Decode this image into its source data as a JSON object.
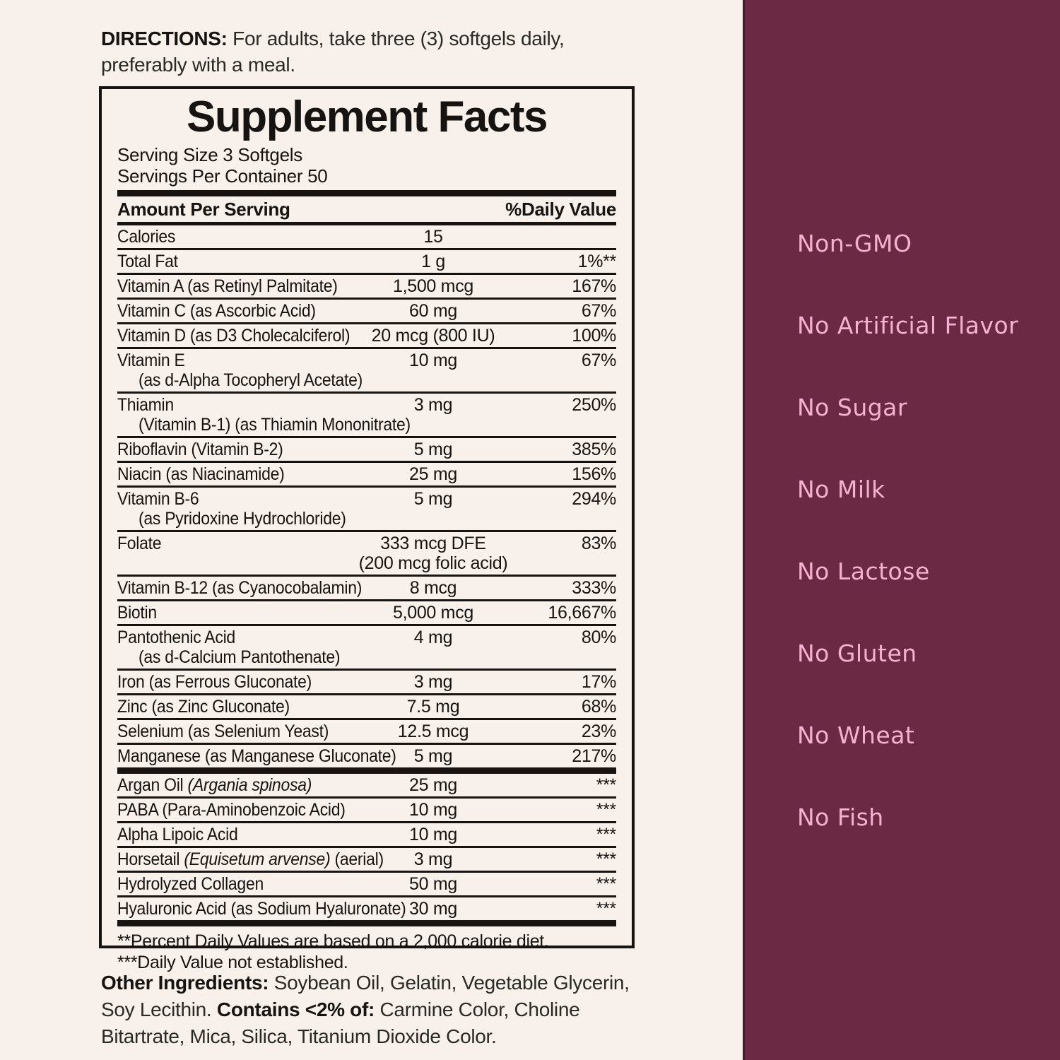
{
  "colors": {
    "background_cream": "#f8f0ea",
    "ink_black": "#171310",
    "panel_maroon": "#6b2943",
    "claim_pink": "#f7b1d0"
  },
  "directions": {
    "label": "DIRECTIONS:",
    "text": " For adults, take three (3) softgels daily, preferably with a meal."
  },
  "supplement_facts": {
    "title": "Supplement Facts",
    "serving_size": "Serving Size 3 Softgels",
    "servings_per_container": "Servings Per Container 50",
    "col_amount": "Amount Per Serving",
    "col_dv": "%Daily Value",
    "rows": [
      {
        "name": [
          {
            "t": "Calories"
          }
        ],
        "amount": "15",
        "dv": ""
      },
      {
        "name": [
          {
            "t": "Total Fat"
          }
        ],
        "amount": "1 g",
        "dv": "1%**"
      },
      {
        "name": [
          {
            "t": "Vitamin A (as Retinyl Palmitate)"
          }
        ],
        "amount": "1,500 mcg",
        "dv": "167%"
      },
      {
        "name": [
          {
            "t": "Vitamin C (as Ascorbic Acid)"
          }
        ],
        "amount": "60 mg",
        "dv": "67%"
      },
      {
        "name": [
          {
            "t": "Vitamin D (as D3 Cholecalciferol)"
          }
        ],
        "amount": "20 mcg (800 IU)",
        "dv": "100%"
      },
      {
        "name": [
          {
            "t": "Vitamin E"
          }
        ],
        "name2": "(as d-Alpha Tocopheryl Acetate)",
        "amount": "10 mg",
        "dv": "67%"
      },
      {
        "name": [
          {
            "t": "Thiamin"
          }
        ],
        "name2": "(Vitamin B-1) (as Thiamin Mononitrate)",
        "amount": "3 mg",
        "dv": "250%"
      },
      {
        "name": [
          {
            "t": "Riboflavin (Vitamin B-2)"
          }
        ],
        "amount": "5 mg",
        "dv": "385%"
      },
      {
        "name": [
          {
            "t": "Niacin (as Niacinamide)"
          }
        ],
        "amount": "25 mg",
        "dv": "156%"
      },
      {
        "name": [
          {
            "t": "Vitamin B-6"
          }
        ],
        "name2": "(as Pyridoxine Hydrochloride)",
        "amount": "5 mg",
        "dv": "294%"
      },
      {
        "name": [
          {
            "t": "Folate"
          }
        ],
        "amount": "333 mcg DFE",
        "amount2": "(200 mcg folic acid)",
        "dv": "83%"
      },
      {
        "name": [
          {
            "t": "Vitamin B-12 (as Cyanocobalamin)"
          }
        ],
        "amount": "8 mcg",
        "dv": "333%"
      },
      {
        "name": [
          {
            "t": "Biotin"
          }
        ],
        "amount": "5,000 mcg",
        "dv": "16,667%"
      },
      {
        "name": [
          {
            "t": "Pantothenic Acid"
          }
        ],
        "name2": "(as d-Calcium Pantothenate)",
        "amount": "4 mg",
        "dv": "80%"
      },
      {
        "name": [
          {
            "t": "Iron (as Ferrous Gluconate)"
          }
        ],
        "amount": "3 mg",
        "dv": "17%"
      },
      {
        "name": [
          {
            "t": "Zinc (as Zinc Gluconate)"
          }
        ],
        "amount": "7.5 mg",
        "dv": "68%"
      },
      {
        "name": [
          {
            "t": "Selenium (as Selenium Yeast)"
          }
        ],
        "amount": "12.5 mcg",
        "dv": "23%"
      },
      {
        "name": [
          {
            "t": "Manganese (as Manganese Gluconate)"
          }
        ],
        "amount": "5 mg",
        "dv": "217%",
        "bar_after": "thick"
      },
      {
        "name": [
          {
            "t": "Argan Oil "
          },
          {
            "t": "(Argania spinosa)",
            "i": true
          }
        ],
        "amount": "25 mg",
        "dv": "***"
      },
      {
        "name": [
          {
            "t": "PABA (Para-Aminobenzoic Acid)"
          }
        ],
        "amount": "10 mg",
        "dv": "***"
      },
      {
        "name": [
          {
            "t": "Alpha Lipoic Acid"
          }
        ],
        "amount": "10 mg",
        "dv": "***"
      },
      {
        "name": [
          {
            "t": "Horsetail "
          },
          {
            "t": "(Equisetum arvense)",
            "i": true
          },
          {
            "t": " (aerial)"
          }
        ],
        "amount": "3 mg",
        "dv": "***"
      },
      {
        "name": [
          {
            "t": "Hydrolyzed Collagen"
          }
        ],
        "amount": "50 mg",
        "dv": "***"
      },
      {
        "name": [
          {
            "t": "Hyaluronic Acid (as Sodium Hyaluronate)"
          }
        ],
        "amount": "30 mg",
        "dv": "***",
        "bar_after": "thick"
      }
    ],
    "footnotes": [
      "**Percent Daily Values are based on a 2,000 calorie diet.",
      "***Daily Value not established."
    ]
  },
  "other_ingredients": {
    "segments": [
      {
        "bold": true,
        "text": "Other Ingredients: "
      },
      {
        "bold": false,
        "text": "Soybean Oil, Gelatin, Vegetable Glycerin, Soy Lecithin. "
      },
      {
        "bold": true,
        "text": "Contains <2% of: "
      },
      {
        "bold": false,
        "text": "Carmine Color, Choline Bitartrate, Mica, Silica, Titanium Dioxide Color."
      }
    ]
  },
  "claims": {
    "items": [
      "Non-GMO",
      "No Artificial Flavor",
      "No Sugar",
      "No Milk",
      "No Lactose",
      "No Gluten",
      "No Wheat",
      "No Fish"
    ]
  }
}
